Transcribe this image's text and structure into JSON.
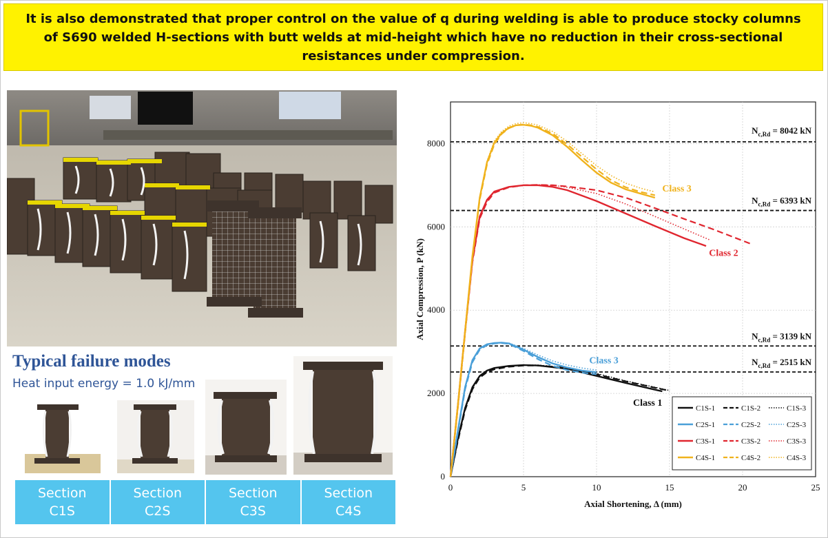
{
  "banner": {
    "text": "It is also demonstrated that proper control on the value of q during welding is able to produce stocky columns of S690 welded H-sections with butt welds at mid-height which have no reduction in their cross-sectional resistances under compression."
  },
  "failure": {
    "title": "Typical failure modes",
    "heat_input": "Heat input energy = 1.0 kJ/mm"
  },
  "sections": [
    {
      "line1": "Section",
      "line2": "C1S"
    },
    {
      "line1": "Section",
      "line2": "C2S"
    },
    {
      "line1": "Section",
      "line2": "C3S"
    },
    {
      "line1": "Section",
      "line2": "C4S"
    }
  ],
  "colors": {
    "C1S": "#111111",
    "C2S": "#4a9fd8",
    "C3S": "#e0262f",
    "C4S": "#f0b21c",
    "banner": "#fff200",
    "tab": "#54c5ee",
    "title_blue": "#2f5597"
  },
  "chart_data": {
    "type": "line",
    "xlabel": "Axial Shortening, Δ (mm)",
    "ylabel": "Axial Compression, P (kN)",
    "xlim": [
      0,
      25
    ],
    "ylim": [
      0,
      9000
    ],
    "xticks": [
      0,
      5,
      10,
      15,
      20,
      25
    ],
    "yticks": [
      0,
      2000,
      4000,
      6000,
      8000
    ],
    "grid": true,
    "legend_position": "bottom-right",
    "reference_lines": [
      {
        "prefix": "N",
        "subscript": "c,Rd",
        "label": " = 8042 kN",
        "value": 8042
      },
      {
        "prefix": "N",
        "subscript": "c,Rd",
        "label": " = 6393 kN",
        "value": 6393
      },
      {
        "prefix": "N",
        "subscript": "c,Rd",
        "label": " = 3139 kN",
        "value": 3139
      },
      {
        "prefix": "N",
        "subscript": "c,Rd",
        "label": " = 2515 kN",
        "value": 2515
      }
    ],
    "annotations": [
      {
        "text": "Class 3",
        "series_group": "C4S"
      },
      {
        "text": "Class 2",
        "series_group": "C3S"
      },
      {
        "text": "Class 3",
        "series_group": "C2S"
      },
      {
        "text": "Class 1",
        "series_group": "C1S"
      }
    ],
    "series": [
      {
        "name": "C1S-1",
        "group": "C1S",
        "style": "solid",
        "x": [
          0,
          0.5,
          1,
          1.5,
          2,
          2.5,
          3,
          4,
          5,
          6,
          8,
          10,
          12,
          14,
          14.5
        ],
        "y": [
          0,
          900,
          1650,
          2150,
          2420,
          2550,
          2610,
          2660,
          2680,
          2670,
          2590,
          2420,
          2250,
          2090,
          2050
        ]
      },
      {
        "name": "C1S-2",
        "group": "C1S",
        "style": "dashed",
        "x": [
          0,
          0.5,
          1,
          1.5,
          2,
          2.5,
          3,
          4,
          5,
          6,
          8,
          10,
          12,
          14.5,
          15
        ],
        "y": [
          0,
          850,
          1600,
          2100,
          2380,
          2510,
          2580,
          2640,
          2670,
          2670,
          2610,
          2460,
          2290,
          2100,
          2060
        ]
      },
      {
        "name": "C1S-3",
        "group": "C1S",
        "style": "dotted",
        "x": [
          0,
          0.5,
          1,
          1.5,
          2,
          2.5,
          3,
          4,
          5,
          6,
          8,
          10,
          12,
          14.5,
          15
        ],
        "y": [
          0,
          880,
          1620,
          2120,
          2400,
          2530,
          2600,
          2650,
          2680,
          2680,
          2620,
          2480,
          2300,
          2110,
          2070
        ]
      },
      {
        "name": "C2S-1",
        "group": "C2S",
        "style": "solid",
        "x": [
          0,
          0.5,
          1,
          1.5,
          2,
          2.5,
          3,
          3.5,
          4,
          5,
          6,
          7,
          8,
          9,
          10
        ],
        "y": [
          0,
          1100,
          2150,
          2800,
          3080,
          3180,
          3210,
          3220,
          3200,
          3050,
          2870,
          2720,
          2620,
          2550,
          2510
        ]
      },
      {
        "name": "C2S-2",
        "group": "C2S",
        "style": "dashed",
        "x": [
          0,
          0.5,
          1,
          1.5,
          2,
          2.5,
          3,
          3.5,
          4,
          5,
          6,
          7,
          8,
          9,
          10
        ],
        "y": [
          0,
          1050,
          2100,
          2750,
          3050,
          3160,
          3200,
          3210,
          3190,
          3020,
          2820,
          2660,
          2560,
          2500,
          2460
        ]
      },
      {
        "name": "C2S-3",
        "group": "C2S",
        "style": "dotted",
        "x": [
          0,
          0.5,
          1,
          1.5,
          2,
          2.5,
          3,
          3.5,
          4,
          5,
          6,
          7,
          8,
          9,
          10
        ],
        "y": [
          0,
          1080,
          2120,
          2780,
          3070,
          3170,
          3210,
          3220,
          3210,
          3080,
          2920,
          2780,
          2680,
          2610,
          2560
        ]
      },
      {
        "name": "C3S-1",
        "group": "C3S",
        "style": "solid",
        "x": [
          0,
          0.5,
          1,
          1.5,
          2,
          2.5,
          3,
          4,
          5,
          6,
          7,
          8,
          10,
          12,
          14,
          16,
          17.5
        ],
        "y": [
          0,
          1700,
          3500,
          5200,
          6250,
          6650,
          6850,
          6960,
          7000,
          7000,
          6960,
          6880,
          6620,
          6320,
          6020,
          5730,
          5540
        ]
      },
      {
        "name": "C3S-2",
        "group": "C3S",
        "style": "dashed",
        "x": [
          0,
          0.5,
          1,
          1.5,
          2,
          2.5,
          3,
          4,
          5,
          6,
          7,
          8,
          10,
          12,
          14,
          16,
          18,
          20.5
        ],
        "y": [
          0,
          1650,
          3450,
          5150,
          6200,
          6600,
          6820,
          6950,
          7000,
          7010,
          7000,
          6970,
          6880,
          6700,
          6450,
          6190,
          5940,
          5600
        ]
      },
      {
        "name": "C3S-3",
        "group": "C3S",
        "style": "dotted",
        "x": [
          0,
          0.5,
          1,
          1.5,
          2,
          2.5,
          3,
          4,
          5,
          6,
          7,
          8,
          10,
          12,
          14,
          16,
          17.8
        ],
        "y": [
          0,
          1680,
          3480,
          5180,
          6220,
          6620,
          6840,
          6960,
          7000,
          7010,
          7000,
          6950,
          6800,
          6550,
          6250,
          5950,
          5680
        ]
      },
      {
        "name": "C4S-1",
        "group": "C4S",
        "style": "solid",
        "x": [
          0,
          0.5,
          1,
          1.5,
          2,
          2.5,
          3,
          3.5,
          4,
          4.5,
          5,
          5.5,
          6,
          7,
          8,
          9,
          10,
          11,
          12,
          13,
          14
        ],
        "y": [
          0,
          1700,
          3500,
          5300,
          6700,
          7550,
          8020,
          8250,
          8380,
          8440,
          8450,
          8430,
          8380,
          8200,
          7920,
          7600,
          7300,
          7060,
          6900,
          6800,
          6700
        ]
      },
      {
        "name": "C4S-2",
        "group": "C4S",
        "style": "dashed",
        "x": [
          0,
          0.5,
          1,
          1.5,
          2,
          2.5,
          3,
          3.5,
          4,
          4.5,
          5,
          5.5,
          6,
          7,
          8,
          9,
          10,
          11,
          12,
          13,
          14
        ],
        "y": [
          0,
          1650,
          3450,
          5250,
          6650,
          7500,
          7980,
          8230,
          8370,
          8440,
          8460,
          8440,
          8400,
          8240,
          7980,
          7680,
          7380,
          7120,
          6950,
          6840,
          6760
        ]
      },
      {
        "name": "C4S-3",
        "group": "C4S",
        "style": "dotted",
        "x": [
          0,
          0.5,
          1,
          1.5,
          2,
          2.5,
          3,
          3.5,
          4,
          4.5,
          5,
          5.5,
          6,
          7,
          8,
          9,
          10,
          11,
          12,
          13,
          14
        ],
        "y": [
          0,
          1720,
          3520,
          5320,
          6720,
          7580,
          8060,
          8290,
          8420,
          8480,
          8500,
          8480,
          8440,
          8290,
          8050,
          7760,
          7470,
          7230,
          7050,
          6930,
          6840
        ]
      }
    ]
  }
}
